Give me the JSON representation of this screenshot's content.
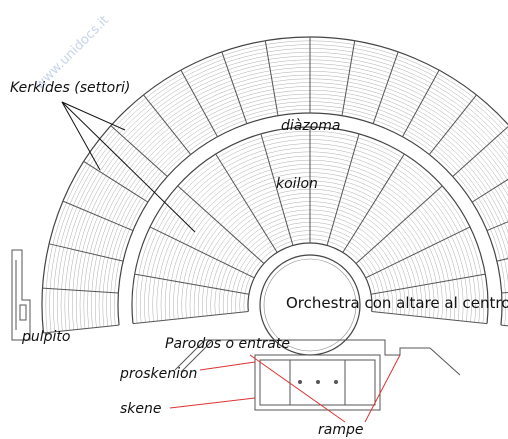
{
  "watermark": "www.unidocs.it",
  "labels": {
    "kerkides": "Kerkides (settori)",
    "diazoma": "diàzoma",
    "koilon": "koilon",
    "orchestra": "Orchestra con altare al centro",
    "pulpito": "pulpito",
    "parodos": "Parodos o entrate",
    "proskenion": "proskenion",
    "skene": "skene",
    "rampe": "rampe"
  }
}
